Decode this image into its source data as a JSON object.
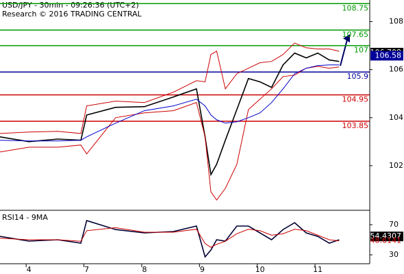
{
  "chart_data": [
    {
      "type": "line",
      "title": "USD/JPY - 30min - 09:26:36 (UTC+2)",
      "subtitle": "Research © 2016 TRADING CENTRAL",
      "x": [
        -0.5,
        0,
        0.5,
        0.9,
        1.0,
        1.5,
        2.0,
        2.5,
        2.9,
        3.05,
        3.15,
        3.25,
        3.4,
        3.6,
        3.8,
        4.0,
        4.2,
        4.4,
        4.6,
        4.8,
        5.0,
        5.2,
        5.37
      ],
      "series": [
        {
          "color": "#000000",
          "values": [
            103.2,
            103.0,
            103.11,
            103.06,
            104.11,
            104.43,
            104.46,
            104.86,
            105.2,
            103.2,
            101.63,
            102.06,
            103.06,
            104.34,
            105.63,
            105.49,
            105.26,
            106.2,
            106.69,
            106.49,
            106.69,
            106.4,
            106.34
          ]
        },
        {
          "color": "#cc0000",
          "values": [
            103.34,
            103.4,
            103.43,
            103.34,
            104.49,
            104.69,
            104.63,
            105.06,
            105.54,
            105.49,
            106.63,
            106.77,
            105.2,
            105.83,
            106.06,
            106.29,
            106.34,
            106.63,
            107.11,
            106.91,
            106.86,
            106.86,
            106.77
          ]
        },
        {
          "color": "#cc0000",
          "values": [
            102.57,
            102.77,
            102.77,
            102.86,
            102.49,
            104.0,
            104.2,
            104.29,
            104.63,
            103.2,
            100.91,
            100.57,
            101.06,
            102.06,
            104.34,
            104.77,
            105.2,
            105.71,
            105.77,
            106.06,
            106.14,
            106.06,
            106.11
          ]
        },
        {
          "color": "#0000cc",
          "values": [
            103.06,
            103.03,
            103.03,
            103.06,
            103.2,
            103.77,
            104.29,
            104.49,
            104.77,
            104.49,
            104.11,
            103.91,
            103.77,
            103.83,
            104.0,
            104.2,
            104.63,
            105.2,
            105.83,
            106.06,
            106.17,
            106.2,
            106.2
          ]
        }
      ],
      "xlim": [
        -0.5,
        5.9
      ],
      "ylim": [
        100.2,
        108.9
      ],
      "yticks": [
        102,
        104,
        106,
        108
      ],
      "levels": [
        {
          "value": 108.75,
          "color": "#009900"
        },
        {
          "value": 107.65,
          "color": "#009900"
        },
        {
          "value": 107,
          "color": "#009900"
        },
        {
          "value": 105.9,
          "color": "#000099"
        },
        {
          "value": 104.95,
          "color": "#cc0000"
        },
        {
          "value": 103.85,
          "color": "#cc0000"
        }
      ],
      "price_labels": [
        {
          "value": 106.708,
          "color": "#000000",
          "boxed": true
        },
        {
          "value": 106.608,
          "color": "#cc0000",
          "boxed": false
        },
        {
          "value": 106.58,
          "color": "#000099",
          "boxed": true
        }
      ]
    },
    {
      "type": "line",
      "title": "RSI14 - 9MA",
      "x": [
        -0.5,
        0,
        0.5,
        0.9,
        1.0,
        1.5,
        2.0,
        2.5,
        2.9,
        3.05,
        3.15,
        3.25,
        3.4,
        3.6,
        3.8,
        4.0,
        4.2,
        4.4,
        4.6,
        4.8,
        5.0,
        5.2,
        5.37
      ],
      "series": [
        {
          "color": "#000033",
          "values": [
            54.5,
            48.2,
            50,
            45.5,
            75.5,
            63.6,
            59.1,
            60.9,
            68.2,
            27.3,
            36.4,
            50,
            48.2,
            68.2,
            68.2,
            59.1,
            50,
            63.6,
            72.7,
            59.1,
            54.5,
            45.5,
            50
          ]
        },
        {
          "color": "#cc0000",
          "values": [
            52,
            50,
            50,
            48,
            62,
            66,
            60,
            60,
            64,
            45,
            40,
            44,
            48,
            58,
            64,
            62,
            56,
            58,
            64,
            62,
            56,
            50,
            48.6
          ]
        }
      ],
      "xlim": [
        -0.5,
        5.9
      ],
      "ylim": [
        18.2,
        86.4
      ],
      "yticks": [
        30,
        70
      ],
      "xticks": [
        {
          "value": 0,
          "label": "4"
        },
        {
          "value": 1,
          "label": "7"
        },
        {
          "value": 2,
          "label": "8"
        },
        {
          "value": 3,
          "label": "9"
        },
        {
          "value": 4,
          "label": "10"
        },
        {
          "value": 5,
          "label": "11"
        }
      ],
      "price_labels": [
        {
          "value": 54.4307,
          "color": "#000000",
          "boxed": true
        },
        {
          "value": 48.6141,
          "color": "#cc0000",
          "boxed": false
        }
      ]
    }
  ]
}
